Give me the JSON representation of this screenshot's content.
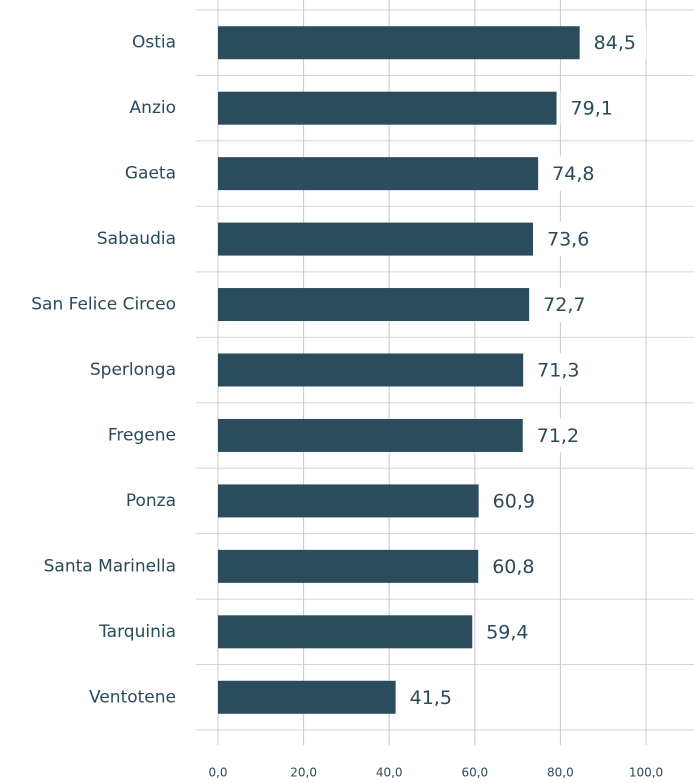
{
  "chart_data": {
    "type": "bar",
    "orientation": "horizontal",
    "categories": [
      "Ostia",
      "Anzio",
      "Gaeta",
      "Sabaudia",
      "San Felice Circeo",
      "Sperlonga",
      "Fregene",
      "Ponza",
      "Santa Marinella",
      "Tarquinia",
      "Ventotene"
    ],
    "values": [
      84.5,
      79.1,
      74.8,
      73.6,
      72.7,
      71.3,
      71.2,
      60.9,
      60.8,
      59.4,
      41.5
    ],
    "value_labels": [
      "84,5",
      "79,1",
      "74,8",
      "73,6",
      "72,7",
      "71,3",
      "71,2",
      "60,9",
      "60,8",
      "59,4",
      "41,5"
    ],
    "color": "#2b4c5c",
    "xlim": [
      0,
      100
    ],
    "xticks": [
      {
        "value": 0,
        "label": "0,0"
      },
      {
        "value": 20,
        "label": "20,0"
      },
      {
        "value": 40,
        "label": "40,0"
      },
      {
        "value": 60,
        "label": "60,0"
      },
      {
        "value": 80,
        "label": "80,0"
      },
      {
        "value": 100,
        "label": "100,0"
      }
    ],
    "grid": true
  }
}
